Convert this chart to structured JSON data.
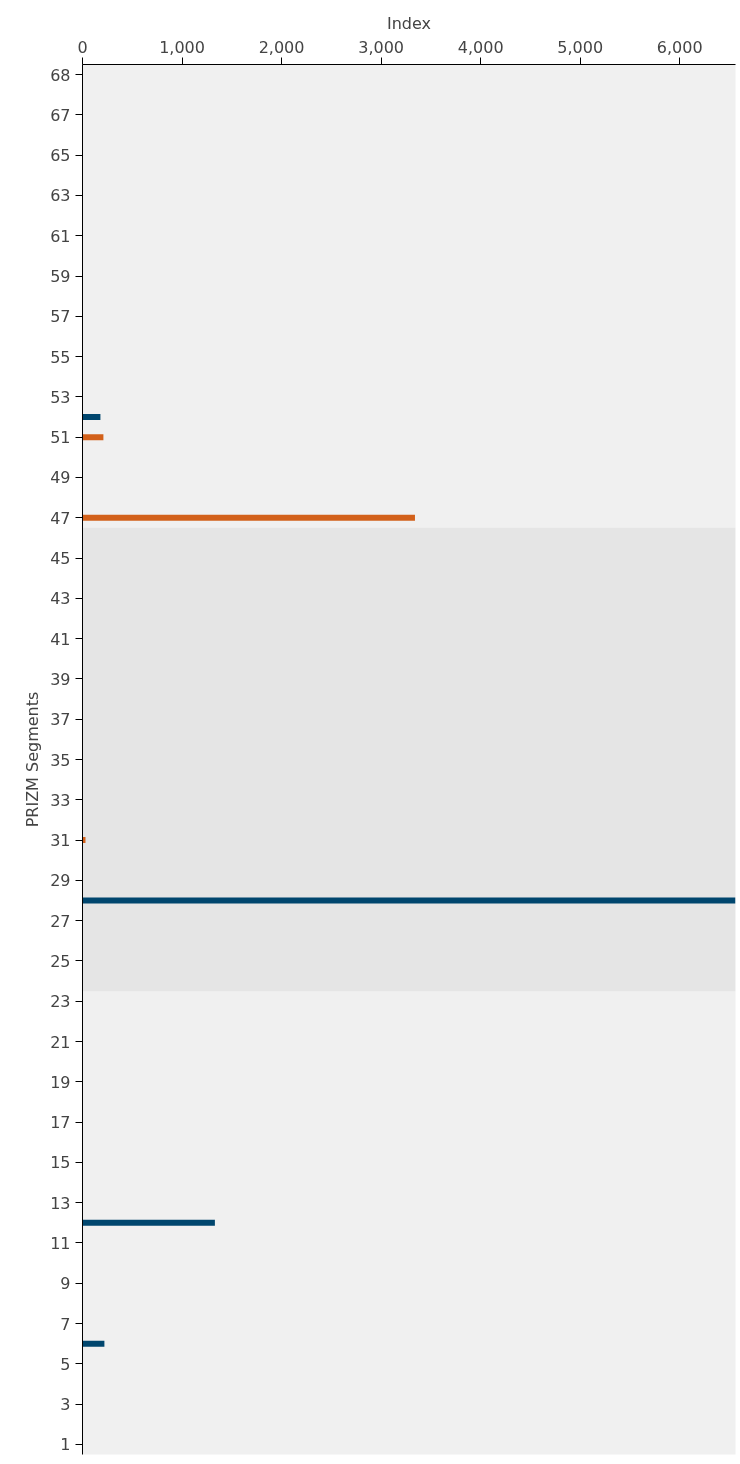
{
  "chart_data": {
    "type": "bar",
    "orientation": "horizontal",
    "xlabel": "Index",
    "ylabel": "PRIZM Segments",
    "categories": [
      "68",
      null,
      "67",
      null,
      "65",
      null,
      "63",
      null,
      "61",
      null,
      "59",
      null,
      "57",
      null,
      "55",
      null,
      "53",
      null,
      "51",
      null,
      "49",
      null,
      "47",
      null,
      "45",
      null,
      "43",
      null,
      "41",
      null,
      "39",
      null,
      "37",
      null,
      "35",
      null,
      "33",
      null,
      "31",
      null,
      "29",
      null,
      "27",
      null,
      "25",
      null,
      "23",
      null,
      "21",
      null,
      "19",
      null,
      "17",
      null,
      "15",
      null,
      "13",
      null,
      "11",
      null,
      "9",
      null,
      "7",
      null,
      "5",
      null,
      "3",
      null,
      "1"
    ],
    "series": [
      {
        "color": "#00466e",
        "values": [
          null,
          null,
          null,
          null,
          null,
          null,
          null,
          null,
          null,
          null,
          null,
          null,
          null,
          null,
          null,
          null,
          null,
          180,
          null,
          null,
          null,
          null,
          null,
          null,
          null,
          null,
          null,
          null,
          null,
          null,
          null,
          null,
          null,
          null,
          null,
          null,
          null,
          null,
          null,
          null,
          null,
          6560,
          null,
          null,
          null,
          null,
          null,
          null,
          null,
          null,
          null,
          null,
          null,
          null,
          null,
          null,
          null,
          1330,
          null,
          null,
          null,
          null,
          null,
          220,
          null,
          null,
          null,
          null,
          null
        ]
      },
      {
        "color": "#d2601a",
        "values": [
          null,
          null,
          null,
          null,
          null,
          null,
          null,
          null,
          null,
          null,
          null,
          null,
          null,
          null,
          null,
          null,
          null,
          null,
          210,
          null,
          null,
          null,
          3340,
          null,
          null,
          null,
          null,
          null,
          null,
          null,
          null,
          null,
          null,
          null,
          null,
          null,
          null,
          null,
          30,
          null,
          null,
          null,
          null,
          null,
          null,
          null,
          null,
          null,
          null,
          null,
          null,
          null,
          null,
          null,
          null,
          null,
          null,
          null,
          null,
          null,
          null,
          null,
          null,
          null,
          null,
          null,
          null,
          null,
          null
        ]
      }
    ],
    "xlim": [
      0,
      6560
    ],
    "xticks": [
      0,
      {
        "value": 1000,
        "label": "1,000"
      },
      {
        "value": 2000,
        "label": "2,000"
      },
      {
        "value": 3000,
        "label": "3,000"
      },
      {
        "value": 4000,
        "label": "4,000"
      },
      {
        "value": 5000,
        "label": "5,000"
      },
      {
        "value": 6000,
        "label": "6,000"
      }
    ],
    "bands": [
      {
        "axis": "y",
        "from": "47",
        "to": "23",
        "color": "#e5e5e5"
      }
    ],
    "grid": false
  }
}
